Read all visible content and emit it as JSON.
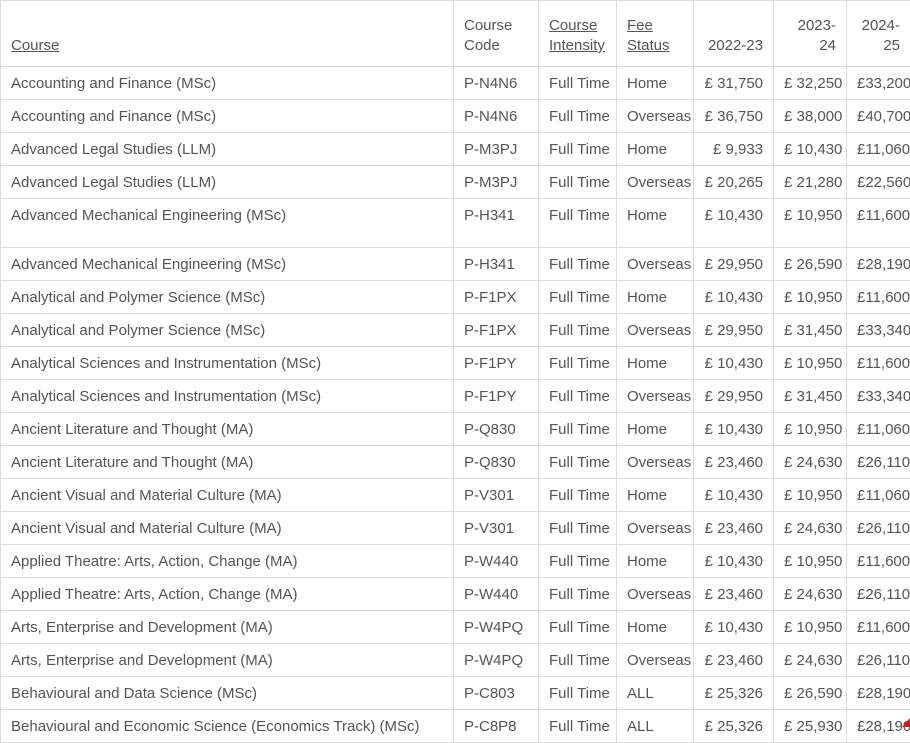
{
  "colors": {
    "text": "#555555",
    "border": "#dcdcdc",
    "background": "#ffffff",
    "artifact_red": "#c41f1f"
  },
  "table": {
    "columns": [
      {
        "key": "course",
        "label": "Course",
        "sortable": true,
        "align": "left"
      },
      {
        "key": "course_code",
        "label": "Course Code",
        "sortable": false,
        "align": "left"
      },
      {
        "key": "course_intensity",
        "label": "Course Intensity",
        "sortable": true,
        "align": "left"
      },
      {
        "key": "fee_status",
        "label": "Fee Status",
        "sortable": true,
        "align": "left"
      },
      {
        "key": "y2022_23",
        "label": "2022-23",
        "sortable": false,
        "align": "right"
      },
      {
        "key": "y2023_24",
        "label": "2023-24",
        "sortable": false,
        "align": "right"
      },
      {
        "key": "y2024_25",
        "label": "2024-25",
        "sortable": false,
        "align": "right"
      }
    ],
    "rows": [
      {
        "course": "Accounting and Finance (MSc)",
        "course_code": "P-N4N6",
        "course_intensity": "Full Time",
        "fee_status": "Home",
        "y2022_23": "£ 31,750",
        "y2023_24": "£ 32,250",
        "y2024_25": "£33,200",
        "tall": false
      },
      {
        "course": "Accounting and Finance (MSc)",
        "course_code": "P-N4N6",
        "course_intensity": "Full Time",
        "fee_status": "Overseas",
        "y2022_23": "£ 36,750",
        "y2023_24": "£ 38,000",
        "y2024_25": "£40,700",
        "tall": false
      },
      {
        "course": "Advanced Legal Studies (LLM)",
        "course_code": "P-M3PJ",
        "course_intensity": "Full Time",
        "fee_status": "Home",
        "y2022_23": "£ 9,933",
        "y2023_24": "£ 10,430",
        "y2024_25": "£11,060",
        "tall": false
      },
      {
        "course": "Advanced Legal Studies (LLM)",
        "course_code": "P-M3PJ",
        "course_intensity": "Full Time",
        "fee_status": "Overseas",
        "y2022_23": "£ 20,265",
        "y2023_24": "£ 21,280",
        "y2024_25": "£22,560",
        "tall": false
      },
      {
        "course": "Advanced Mechanical Engineering (MSc)",
        "course_code": "P-H341",
        "course_intensity": "Full Time",
        "fee_status": "Home",
        "y2022_23": "£ 10,430",
        "y2023_24": "£ 10,950",
        "y2024_25": "£11,600",
        "tall": true
      },
      {
        "course": "Advanced Mechanical Engineering (MSc)",
        "course_code": "P-H341",
        "course_intensity": "Full Time",
        "fee_status": "Overseas",
        "y2022_23": "£ 29,950",
        "y2023_24": "£ 26,590",
        "y2024_25": "£28,190",
        "tall": false
      },
      {
        "course": "Analytical and Polymer Science (MSc)",
        "course_code": "P-F1PX",
        "course_intensity": "Full Time",
        "fee_status": "Home",
        "y2022_23": "£ 10,430",
        "y2023_24": "£ 10,950",
        "y2024_25": "£11,600",
        "tall": false
      },
      {
        "course": "Analytical and Polymer Science (MSc)",
        "course_code": "P-F1PX",
        "course_intensity": "Full Time",
        "fee_status": "Overseas",
        "y2022_23": "£ 29,950",
        "y2023_24": "£ 31,450",
        "y2024_25": "£33,340",
        "tall": false
      },
      {
        "course": "Analytical Sciences and Instrumentation (MSc)",
        "course_code": "P-F1PY",
        "course_intensity": "Full Time",
        "fee_status": "Home",
        "y2022_23": "£ 10,430",
        "y2023_24": "£ 10,950",
        "y2024_25": "£11,600",
        "tall": false
      },
      {
        "course": "Analytical Sciences and Instrumentation (MSc)",
        "course_code": "P-F1PY",
        "course_intensity": "Full Time",
        "fee_status": "Overseas",
        "y2022_23": "£ 29,950",
        "y2023_24": "£ 31,450",
        "y2024_25": "£33,340",
        "tall": false
      },
      {
        "course": "Ancient Literature and Thought (MA)",
        "course_code": "P-Q830",
        "course_intensity": "Full Time",
        "fee_status": "Home",
        "y2022_23": "£ 10,430",
        "y2023_24": "£ 10,950",
        "y2024_25": "£11,060",
        "tall": false
      },
      {
        "course": "Ancient Literature and Thought (MA)",
        "course_code": "P-Q830",
        "course_intensity": "Full Time",
        "fee_status": "Overseas",
        "y2022_23": "£ 23,460",
        "y2023_24": "£ 24,630",
        "y2024_25": "£26,110",
        "tall": false
      },
      {
        "course": "Ancient Visual and Material Culture (MA)",
        "course_code": "P-V301",
        "course_intensity": "Full Time",
        "fee_status": "Home",
        "y2022_23": "£ 10,430",
        "y2023_24": "£ 10,950",
        "y2024_25": "£11,060",
        "tall": false
      },
      {
        "course": "Ancient Visual and Material Culture (MA)",
        "course_code": "P-V301",
        "course_intensity": "Full Time",
        "fee_status": "Overseas",
        "y2022_23": "£ 23,460",
        "y2023_24": "£ 24,630",
        "y2024_25": "£26,110",
        "tall": false
      },
      {
        "course": "Applied Theatre: Arts, Action, Change (MA)",
        "course_code": "P-W440",
        "course_intensity": "Full Time",
        "fee_status": "Home",
        "y2022_23": "£ 10,430",
        "y2023_24": "£ 10,950",
        "y2024_25": "£11,600",
        "tall": false
      },
      {
        "course": "Applied Theatre: Arts, Action, Change (MA)",
        "course_code": "P-W440",
        "course_intensity": "Full Time",
        "fee_status": "Overseas",
        "y2022_23": "£ 23,460",
        "y2023_24": "£ 24,630",
        "y2024_25": "£26,110",
        "tall": false
      },
      {
        "course": "Arts, Enterprise and Development (MA)",
        "course_code": "P-W4PQ",
        "course_intensity": "Full Time",
        "fee_status": "Home",
        "y2022_23": "£ 10,430",
        "y2023_24": "£ 10,950",
        "y2024_25": "£11,600",
        "tall": false
      },
      {
        "course": "Arts, Enterprise and Development (MA)",
        "course_code": "P-W4PQ",
        "course_intensity": "Full Time",
        "fee_status": "Overseas",
        "y2022_23": "£ 23,460",
        "y2023_24": "£ 24,630",
        "y2024_25": "£26,110",
        "tall": false
      },
      {
        "course": "Behavioural and Data Science (MSc)",
        "course_code": "P-C803",
        "course_intensity": "Full Time",
        "fee_status": "ALL",
        "y2022_23": "£ 25,326",
        "y2023_24": "£ 26,590",
        "y2024_25": "£28,190",
        "tall": false
      },
      {
        "course": "Behavioural and Economic Science (Economics Track) (MSc)",
        "course_code": "P-C8P8",
        "course_intensity": "Full Time",
        "fee_status": "ALL",
        "y2022_23": "£ 25,326",
        "y2023_24": "£ 25,930",
        "y2024_25": "£28,190",
        "tall": false
      }
    ]
  }
}
